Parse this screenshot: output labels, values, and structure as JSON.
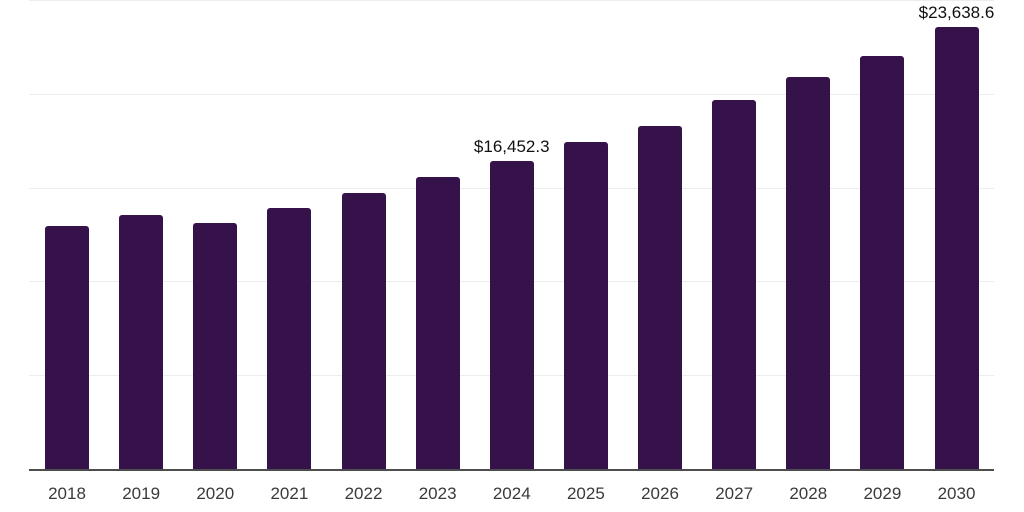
{
  "chart_data": {
    "type": "bar",
    "title": "",
    "xlabel": "",
    "ylabel": "",
    "categories": [
      "2018",
      "2019",
      "2020",
      "2021",
      "2022",
      "2023",
      "2024",
      "2025",
      "2026",
      "2027",
      "2028",
      "2029",
      "2030"
    ],
    "values": [
      13010,
      13590,
      13150,
      13950,
      14780,
      15640,
      16452.3,
      17470,
      18340,
      19740,
      20970,
      22070,
      23638.6
    ],
    "ylim": [
      0,
      25000
    ],
    "gridline_step": 5000,
    "grid": true,
    "legend": "none",
    "y_axis_tick_labels_visible": false,
    "annotations": [
      {
        "category": "2024",
        "label": "$16,452.3"
      },
      {
        "category": "2030",
        "label": "$23,638.6"
      }
    ],
    "colors": {
      "bar": "#351249",
      "gridline": "#ededed",
      "axis": "#4d4d4d",
      "tick_text": "#3a3a3a",
      "annotation_text": "#111111",
      "background": "#ffffff"
    }
  }
}
